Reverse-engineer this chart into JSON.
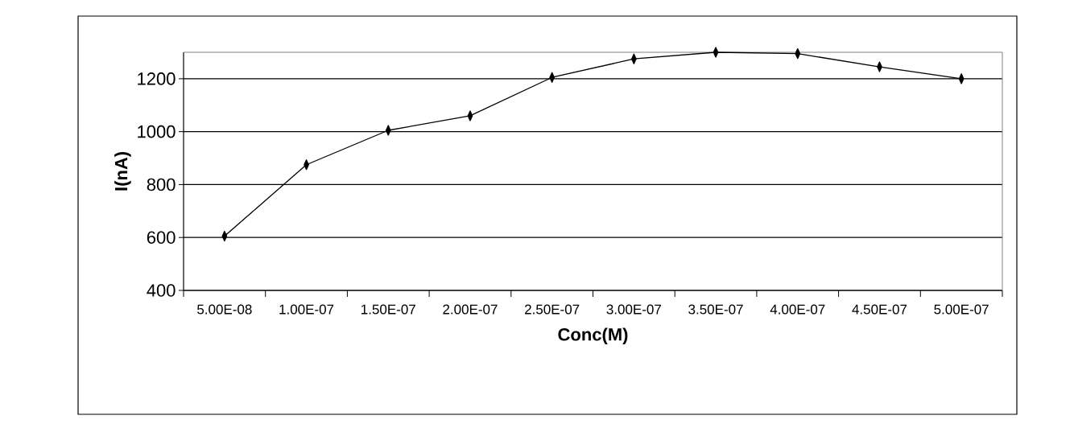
{
  "chart_data": {
    "type": "line",
    "xlabel": "Conc(M)",
    "ylabel": "I(nA)",
    "categories": [
      "5.00E-08",
      "1.00E-07",
      "1.50E-07",
      "2.00E-07",
      "2.50E-07",
      "3.00E-07",
      "3.50E-07",
      "4.00E-07",
      "4.50E-07",
      "5.00E-07"
    ],
    "series": [
      {
        "color": "#000000",
        "values": [
          605,
          875,
          1005,
          1060,
          1205,
          1275,
          1300,
          1295,
          1245,
          1200
        ]
      }
    ],
    "ylim": [
      400,
      1300
    ],
    "yticks": [
      400,
      600,
      800,
      1000,
      1200
    ],
    "grid": "y",
    "marker": "diamond",
    "line_style": "solid"
  }
}
